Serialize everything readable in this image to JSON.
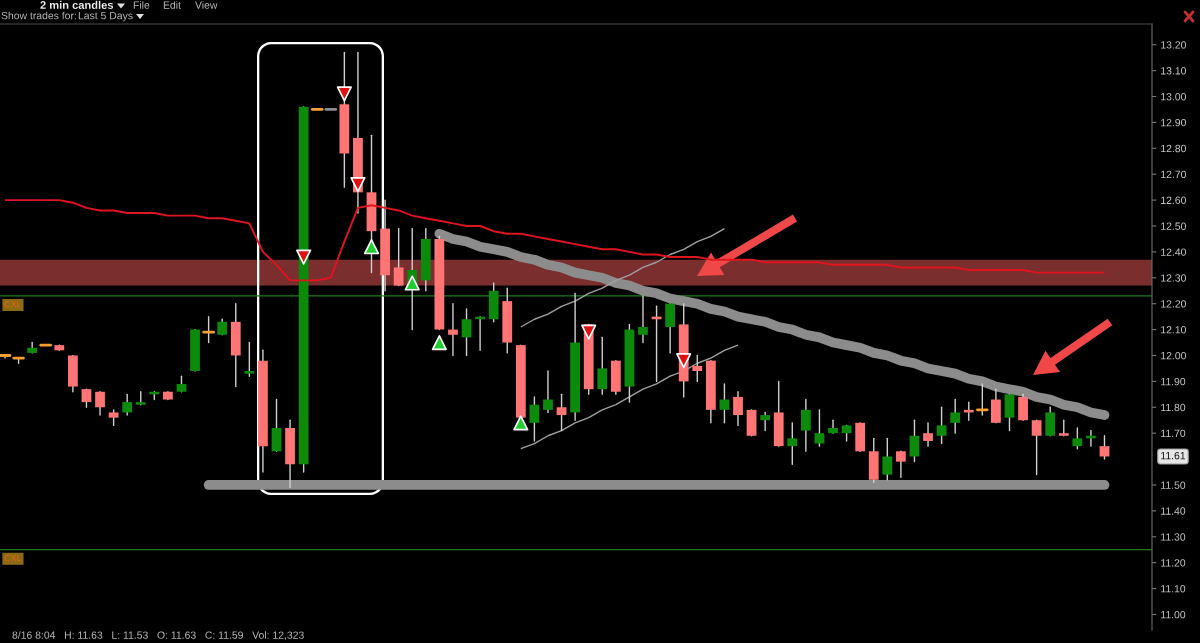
{
  "chart_data": {
    "type": "candlestick",
    "title": "2 min candles",
    "categories": [
      null,
      null,
      null,
      null,
      null,
      null,
      null,
      null,
      null,
      null,
      null,
      null,
      null,
      null,
      null,
      null,
      null,
      null,
      null,
      null,
      null,
      null,
      null,
      null,
      null,
      null,
      null,
      null,
      null,
      null,
      null,
      null,
      null,
      null,
      null,
      null,
      null,
      null,
      null,
      null,
      null,
      null,
      null,
      null,
      null,
      null,
      null,
      null,
      null,
      null,
      null,
      null,
      null,
      null,
      null,
      null,
      null,
      null,
      null,
      null,
      null,
      null,
      null,
      null,
      null,
      null,
      null,
      null,
      null,
      null,
      null,
      null,
      null,
      null,
      null,
      null,
      null,
      null,
      null,
      null,
      null,
      null
    ],
    "ohlc": [
      [
        12.0,
        12.0,
        11.99,
        12.0
      ],
      [
        11.99,
        11.99,
        11.97,
        11.99
      ],
      [
        12.01,
        12.05,
        12.01,
        12.03
      ],
      [
        12.04,
        12.04,
        12.04,
        12.04
      ],
      [
        12.04,
        12.04,
        12.02,
        12.02
      ],
      [
        12.0,
        12.0,
        11.86,
        11.88
      ],
      [
        11.87,
        11.87,
        11.8,
        11.82
      ],
      [
        11.86,
        11.86,
        11.77,
        11.8
      ],
      [
        11.78,
        11.79,
        11.73,
        11.76
      ],
      [
        11.78,
        11.85,
        11.77,
        11.82
      ],
      [
        11.81,
        11.86,
        11.81,
        11.82
      ],
      [
        11.85,
        11.86,
        11.83,
        11.86
      ],
      [
        11.86,
        11.86,
        11.83,
        11.83
      ],
      [
        11.86,
        11.92,
        11.86,
        11.89
      ],
      [
        11.94,
        12.1,
        11.94,
        12.1
      ],
      [
        12.09,
        12.15,
        12.05,
        12.09
      ],
      [
        12.08,
        12.14,
        12.08,
        12.13
      ],
      [
        12.13,
        12.2,
        11.88,
        12.0
      ],
      [
        11.93,
        12.05,
        11.92,
        11.94
      ],
      [
        11.98,
        12.02,
        11.55,
        11.65
      ],
      [
        11.63,
        11.83,
        11.63,
        11.72
      ],
      [
        11.72,
        11.75,
        11.49,
        11.58
      ],
      [
        11.58,
        12.96,
        11.55,
        12.96
      ],
      [
        12.95,
        12.95,
        12.95,
        12.95
      ],
      [
        12.95,
        12.95,
        12.95,
        12.95
      ],
      [
        12.97,
        13.17,
        12.65,
        12.78
      ],
      [
        12.84,
        13.17,
        12.55,
        12.63
      ],
      [
        12.63,
        12.85,
        12.32,
        12.48
      ],
      [
        12.49,
        12.6,
        12.25,
        12.31
      ],
      [
        12.34,
        12.49,
        12.27,
        12.27
      ],
      [
        12.27,
        12.49,
        12.1,
        12.33
      ],
      [
        12.29,
        12.49,
        12.25,
        12.45
      ],
      [
        12.45,
        12.46,
        12.1,
        12.1
      ],
      [
        12.1,
        12.2,
        12.0,
        12.08
      ],
      [
        12.07,
        12.18,
        12.0,
        12.14
      ],
      [
        12.14,
        12.15,
        12.02,
        12.15
      ],
      [
        12.14,
        12.28,
        12.13,
        12.25
      ],
      [
        12.21,
        12.26,
        12.01,
        12.05
      ],
      [
        12.04,
        12.04,
        11.76,
        11.76
      ],
      [
        11.74,
        11.84,
        11.67,
        11.81
      ],
      [
        11.79,
        11.94,
        11.78,
        11.83
      ],
      [
        11.8,
        11.85,
        11.71,
        11.77
      ],
      [
        11.78,
        12.24,
        11.75,
        12.05
      ],
      [
        12.12,
        12.12,
        11.85,
        11.87
      ],
      [
        11.87,
        12.07,
        11.85,
        11.95
      ],
      [
        11.98,
        11.98,
        11.85,
        11.86
      ],
      [
        11.88,
        12.12,
        11.82,
        12.1
      ],
      [
        12.08,
        12.23,
        12.05,
        12.11
      ],
      [
        12.15,
        12.19,
        11.9,
        12.14
      ],
      [
        12.11,
        12.2,
        12.01,
        12.2
      ],
      [
        12.12,
        12.2,
        11.84,
        11.9
      ],
      [
        11.96,
        12.0,
        11.9,
        11.94
      ],
      [
        11.98,
        11.98,
        11.74,
        11.79
      ],
      [
        11.79,
        11.89,
        11.74,
        11.83
      ],
      [
        11.84,
        11.86,
        11.73,
        11.77
      ],
      [
        11.79,
        11.79,
        11.69,
        11.69
      ],
      [
        11.75,
        11.78,
        11.71,
        11.77
      ],
      [
        11.78,
        11.9,
        11.65,
        11.65
      ],
      [
        11.65,
        11.74,
        11.58,
        11.68
      ],
      [
        11.71,
        11.83,
        11.63,
        11.79
      ],
      [
        11.66,
        11.79,
        11.65,
        11.7
      ],
      [
        11.7,
        11.75,
        11.7,
        11.72
      ],
      [
        11.7,
        11.73,
        11.67,
        11.73
      ],
      [
        11.74,
        11.74,
        11.63,
        11.63
      ],
      [
        11.63,
        11.68,
        11.51,
        11.52
      ],
      [
        11.54,
        11.68,
        11.52,
        11.61
      ],
      [
        11.63,
        11.63,
        11.53,
        11.59
      ],
      [
        11.61,
        11.75,
        11.59,
        11.69
      ],
      [
        11.7,
        11.74,
        11.65,
        11.67
      ],
      [
        11.69,
        11.8,
        11.66,
        11.73
      ],
      [
        11.74,
        11.83,
        11.7,
        11.78
      ],
      [
        11.79,
        11.82,
        11.75,
        11.78
      ],
      [
        11.79,
        11.89,
        11.77,
        11.79
      ],
      [
        11.83,
        11.87,
        11.74,
        11.74
      ],
      [
        11.76,
        11.85,
        11.71,
        11.85
      ],
      [
        11.84,
        11.85,
        11.75,
        11.75
      ],
      [
        11.75,
        11.75,
        11.54,
        11.69
      ],
      [
        11.69,
        11.8,
        11.69,
        11.78
      ],
      [
        11.7,
        11.75,
        11.69,
        11.69
      ],
      [
        11.65,
        11.72,
        11.64,
        11.68
      ],
      [
        11.68,
        11.71,
        11.65,
        11.69
      ],
      [
        11.65,
        11.69,
        11.6,
        11.61
      ]
    ],
    "colors": [
      "#f5a030",
      "#f5a030",
      "#0b8a0b",
      "#f5a030",
      "#ff7575",
      "#ff7575",
      "#ff7575",
      "#ff7575",
      "#ff7575",
      "#0b8a0b",
      "#0b8a0b",
      "#0b8a0b",
      "#ff7575",
      "#0b8a0b",
      "#0b8a0b",
      "#f5a030",
      "#0b8a0b",
      "#ff7575",
      "#0b8a0b",
      "#ff7575",
      "#0b8a0b",
      "#ff7575",
      "#0b8a0b",
      "#f5a030",
      "#8c8c8c",
      "#ff7575",
      "#ff7575",
      "#ff7575",
      "#ff7575",
      "#ff7575",
      "#0b8a0b",
      "#0b8a0b",
      "#ff7575",
      "#ff7575",
      "#0b8a0b",
      "#0b8a0b",
      "#0b8a0b",
      "#ff7575",
      "#ff7575",
      "#0b8a0b",
      "#0b8a0b",
      "#ff7575",
      "#0b8a0b",
      "#ff7575",
      "#0b8a0b",
      "#ff7575",
      "#0b8a0b",
      "#0b8a0b",
      "#ff7575",
      "#0b8a0b",
      "#ff7575",
      "#ff7575",
      "#ff7575",
      "#0b8a0b",
      "#ff7575",
      "#ff7575",
      "#0b8a0b",
      "#ff7575",
      "#0b8a0b",
      "#0b8a0b",
      "#0b8a0b",
      "#0b8a0b",
      "#0b8a0b",
      "#ff7575",
      "#ff7575",
      "#0b8a0b",
      "#ff7575",
      "#0b8a0b",
      "#ff7575",
      "#0b8a0b",
      "#0b8a0b",
      "#ff7575",
      "#f5a030",
      "#ff7575",
      "#0b8a0b",
      "#ff7575",
      "#ff7575",
      "#0b8a0b",
      "#ff7575",
      "#0b8a0b",
      "#0b8a0b",
      "#ff7575"
    ],
    "ylim": [
      10.94,
      13.28
    ],
    "yticks": [
      {
        "value": 11.0,
        "label": "11.00"
      },
      {
        "value": 11.1,
        "label": "11.10"
      },
      {
        "value": 11.2,
        "label": "11.20"
      },
      {
        "value": 11.3,
        "label": "11.30"
      },
      {
        "value": 11.4,
        "label": "11.40"
      },
      {
        "value": 11.5,
        "label": "11.50"
      },
      {
        "value": 11.7,
        "label": "11.70"
      },
      {
        "value": 11.8,
        "label": "11.80"
      },
      {
        "value": 11.9,
        "label": "11.90"
      },
      {
        "value": 12.0,
        "label": "12.00"
      },
      {
        "value": 12.1,
        "label": "12.10"
      },
      {
        "value": 12.2,
        "label": "12.20"
      },
      {
        "value": 12.3,
        "label": "12.30"
      },
      {
        "value": 12.4,
        "label": "12.40"
      },
      {
        "value": 12.5,
        "label": "12.50"
      },
      {
        "value": 12.6,
        "label": "12.60"
      },
      {
        "value": 12.7,
        "label": "12.70"
      },
      {
        "value": 12.8,
        "label": "12.80"
      },
      {
        "value": 12.9,
        "label": "12.90"
      },
      {
        "value": 13.0,
        "label": "13.00"
      },
      {
        "value": 13.1,
        "label": "13.10"
      },
      {
        "value": 13.2,
        "label": "13.20"
      }
    ],
    "tick_labels": "y",
    "series": [
      {
        "type": "line",
        "color": "#e0141e",
        "values": [
          12.6,
          12.6,
          12.6,
          12.6,
          12.6,
          12.59,
          12.57,
          12.56,
          12.56,
          12.55,
          12.55,
          12.55,
          12.54,
          12.54,
          12.54,
          12.53,
          12.53,
          12.52,
          12.51,
          12.4,
          12.35,
          12.29,
          12.29,
          12.29,
          12.3,
          12.44,
          12.57,
          12.58,
          12.57,
          12.56,
          12.54,
          12.53,
          12.52,
          12.51,
          12.5,
          12.5,
          12.48,
          12.47,
          12.47,
          12.46,
          12.45,
          12.44,
          12.43,
          12.42,
          12.41,
          12.41,
          12.4,
          12.39,
          12.39,
          12.38,
          12.38,
          12.38,
          12.37,
          12.37,
          12.37,
          12.37,
          12.36,
          12.36,
          12.36,
          12.36,
          12.36,
          12.35,
          12.35,
          12.35,
          12.35,
          12.35,
          12.34,
          12.34,
          12.34,
          12.34,
          12.34,
          12.33,
          12.33,
          12.33,
          12.33,
          12.33,
          12.32,
          12.32,
          12.32,
          12.32,
          12.32,
          12.32
        ]
      },
      {
        "type": "line",
        "color": "#8c8c8c",
        "values": [
          null,
          null,
          null,
          null,
          null,
          null,
          null,
          null,
          null,
          null,
          null,
          null,
          null,
          null,
          null,
          null,
          null,
          null,
          null,
          null,
          null,
          null,
          null,
          null,
          null,
          null,
          null,
          null,
          null,
          null,
          null,
          null,
          12.47,
          12.45,
          12.44,
          12.42,
          12.41,
          12.4,
          12.38,
          12.37,
          12.35,
          12.34,
          12.32,
          12.31,
          12.3,
          12.28,
          12.27,
          12.25,
          12.24,
          12.22,
          12.21,
          12.2,
          12.18,
          12.17,
          12.15,
          12.14,
          12.13,
          12.11,
          12.1,
          12.08,
          12.07,
          12.05,
          12.04,
          12.03,
          12.01,
          12.0,
          11.98,
          11.97,
          11.95,
          11.94,
          11.93,
          11.91,
          11.9,
          11.88,
          11.87,
          11.86,
          11.84,
          11.83,
          11.81,
          11.8,
          11.78,
          11.77
        ]
      },
      {
        "type": "line",
        "color": "#8c8c8c",
        "values": [
          null,
          null,
          null,
          null,
          null,
          null,
          null,
          null,
          null,
          null,
          null,
          null,
          null,
          null,
          null,
          11.5,
          11.5,
          11.5,
          11.5,
          11.5,
          11.5,
          11.5,
          11.5,
          11.5,
          11.5,
          11.5,
          11.5,
          11.5,
          11.5,
          11.5,
          11.5,
          11.5,
          11.5,
          11.5,
          11.5,
          11.5,
          11.5,
          11.5,
          11.5,
          11.5,
          11.5,
          11.5,
          11.5,
          11.5,
          11.5,
          11.5,
          11.5,
          11.5,
          11.5,
          11.5,
          11.5,
          11.5,
          11.5,
          11.5,
          11.5,
          11.5,
          11.5,
          11.5,
          11.5,
          11.5,
          11.5,
          11.5,
          11.5,
          11.5,
          11.5,
          11.5,
          11.5,
          11.5,
          11.5,
          11.5,
          11.5,
          11.5,
          11.5,
          11.5,
          11.5,
          11.5,
          11.5,
          11.5,
          11.5,
          11.5,
          11.5,
          11.5
        ]
      },
      {
        "type": "line",
        "color": "#a0a0a0",
        "values": [
          null,
          null,
          null,
          null,
          null,
          null,
          null,
          null,
          null,
          null,
          null,
          null,
          null,
          null,
          null,
          null,
          null,
          null,
          null,
          null,
          null,
          null,
          null,
          null,
          null,
          null,
          null,
          null,
          null,
          null,
          null,
          null,
          null,
          null,
          null,
          null,
          null,
          null,
          12.11,
          12.14,
          12.16,
          12.19,
          12.21,
          12.24,
          12.26,
          12.29,
          12.31,
          12.34,
          12.36,
          12.39,
          12.41,
          12.44,
          12.46,
          12.49,
          null,
          null,
          null,
          null,
          null,
          null,
          null,
          null,
          null,
          null,
          null,
          null,
          null,
          null,
          null,
          null,
          null,
          null,
          null,
          null,
          null,
          null,
          null,
          null,
          null,
          null,
          null,
          null
        ]
      },
      {
        "type": "line",
        "color": "#a0a0a0",
        "values": [
          null,
          null,
          null,
          null,
          null,
          null,
          null,
          null,
          null,
          null,
          null,
          null,
          null,
          null,
          null,
          null,
          null,
          null,
          null,
          null,
          null,
          null,
          null,
          null,
          null,
          null,
          null,
          null,
          null,
          null,
          null,
          null,
          null,
          null,
          null,
          null,
          null,
          null,
          11.64,
          11.66,
          11.69,
          11.71,
          11.74,
          11.76,
          11.79,
          11.81,
          11.84,
          11.87,
          11.89,
          11.92,
          11.94,
          11.97,
          11.99,
          12.02,
          12.04,
          null,
          null,
          null,
          null,
          null,
          null,
          null,
          null,
          null,
          null,
          null,
          null,
          null,
          null,
          null,
          null,
          null,
          null,
          null,
          null,
          null,
          null,
          null,
          null,
          null,
          null,
          null
        ]
      },
      {
        "type": "scatter",
        "marker": "triangle",
        "color": "#1fcf2f",
        "values": [
          null,
          null,
          null,
          null,
          null,
          null,
          null,
          null,
          null,
          null,
          null,
          null,
          null,
          null,
          null,
          null,
          null,
          null,
          null,
          null,
          null,
          null,
          null,
          null,
          null,
          null,
          null,
          12.42,
          null,
          null,
          12.28,
          null,
          12.05,
          null,
          null,
          null,
          null,
          null,
          11.74,
          null,
          null,
          null,
          null,
          null,
          null,
          null,
          null,
          null,
          null,
          null,
          null,
          null,
          null,
          null,
          null,
          null,
          null,
          null,
          null,
          null,
          null,
          null,
          null,
          null,
          null,
          null,
          null,
          null,
          null,
          null,
          null,
          null,
          null,
          null,
          null,
          null,
          null,
          null,
          null,
          null,
          null,
          null
        ]
      },
      {
        "type": "scatter",
        "marker": "triangle",
        "color": "#e01010",
        "values": [
          null,
          null,
          null,
          null,
          null,
          null,
          null,
          null,
          null,
          null,
          null,
          null,
          null,
          null,
          null,
          null,
          null,
          null,
          null,
          null,
          null,
          null,
          12.38,
          null,
          null,
          13.01,
          12.66,
          null,
          null,
          null,
          null,
          null,
          null,
          null,
          null,
          null,
          null,
          null,
          null,
          null,
          null,
          null,
          null,
          12.09,
          null,
          null,
          null,
          null,
          null,
          null,
          11.98,
          null,
          null,
          null,
          null,
          null,
          null,
          null,
          null,
          null,
          null,
          null,
          null,
          null,
          null,
          null,
          null,
          null,
          null,
          null,
          null,
          null,
          null,
          null,
          null,
          null,
          null,
          null,
          null,
          null,
          null,
          null
        ]
      }
    ],
    "ref_lines": [
      {
        "axis": "y",
        "value": 12.23,
        "label": "CXL",
        "color": "#1e7a1e"
      },
      {
        "axis": "y",
        "value": 11.25,
        "label": "CXL",
        "color": "#1e7a1e"
      }
    ],
    "bands": [
      {
        "axis": "y",
        "from": 12.27,
        "to": 12.37,
        "color": "#7a2e2e"
      }
    ],
    "annotations": [
      "File",
      "Edit",
      "View",
      "Show trades for:",
      "Last 5 Days",
      "8/16 8:04   H: 11.63   L: 11.53   O: 11.63   C: 11.59   Vol: 12,323",
      "11.61"
    ]
  }
}
